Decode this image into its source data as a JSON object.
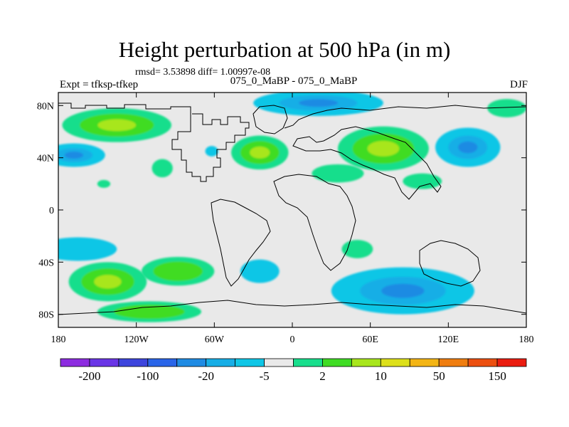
{
  "chart_data": {
    "type": "contour-map",
    "title": "Height perturbation at 500 hPa (in m)",
    "stats_text": "rmsd= 3.53898 diff= 1.00997e-08",
    "subtitle": "075_0_MaBP - 075_0_MaBP",
    "left_label": "Expt = tfksp-tfkep",
    "right_label": "DJF",
    "xlim": [
      -180,
      180
    ],
    "ylim": [
      -90,
      90
    ],
    "x_ticks": [
      {
        "value": -180,
        "label": "180"
      },
      {
        "value": -120,
        "label": "120W"
      },
      {
        "value": -60,
        "label": "60W"
      },
      {
        "value": 0,
        "label": "0"
      },
      {
        "value": 60,
        "label": "60E"
      },
      {
        "value": 120,
        "label": "120E"
      },
      {
        "value": 180,
        "label": "180"
      }
    ],
    "y_ticks": [
      {
        "value": 80,
        "label": "80N"
      },
      {
        "value": 40,
        "label": "40N"
      },
      {
        "value": 0,
        "label": "0"
      },
      {
        "value": -40,
        "label": "40S"
      },
      {
        "value": -80,
        "label": "80S"
      }
    ],
    "colorbar": {
      "colors": [
        "#8d2ce0",
        "#6a35e6",
        "#3d45dd",
        "#2a65e8",
        "#1f8be3",
        "#17aee6",
        "#0fc6e6",
        "#e9e9e9",
        "#18de8c",
        "#3fdc24",
        "#a8e61c",
        "#dde01a",
        "#f3b515",
        "#ef7d0f",
        "#ec4f10",
        "#ea1c10"
      ],
      "labels": [
        {
          "boundary": 1,
          "label": "-200"
        },
        {
          "boundary": 3,
          "label": "-100"
        },
        {
          "boundary": 5,
          "label": "-20"
        },
        {
          "boundary": 7,
          "label": "-5"
        },
        {
          "boundary": 9,
          "label": "2"
        },
        {
          "boundary": 11,
          "label": "10"
        },
        {
          "boundary": 13,
          "label": "50"
        },
        {
          "boundary": 15,
          "label": "150"
        }
      ]
    },
    "anomalies": [
      {
        "lon": -135,
        "lat": 65,
        "rx": 42,
        "ry": 13,
        "value": 12
      },
      {
        "lon": -168,
        "lat": 42,
        "rx": 24,
        "ry": 9,
        "value": -9
      },
      {
        "lon": -100,
        "lat": 32,
        "rx": 8,
        "ry": 7,
        "value": 4
      },
      {
        "lon": -145,
        "lat": 20,
        "rx": 5,
        "ry": 3,
        "value": 3
      },
      {
        "lon": -25,
        "lat": 44,
        "rx": 22,
        "ry": 13,
        "value": 11
      },
      {
        "lon": -62,
        "lat": 45,
        "rx": 5,
        "ry": 4,
        "value": -4
      },
      {
        "lon": 20,
        "lat": 82,
        "rx": 50,
        "ry": 10,
        "value": -9
      },
      {
        "lon": 70,
        "lat": 47,
        "rx": 35,
        "ry": 17,
        "value": 12
      },
      {
        "lon": 135,
        "lat": 48,
        "rx": 25,
        "ry": 15,
        "value": -9
      },
      {
        "lon": 165,
        "lat": 78,
        "rx": 15,
        "ry": 7,
        "value": 5
      },
      {
        "lon": 35,
        "lat": 28,
        "rx": 20,
        "ry": 7,
        "value": 4
      },
      {
        "lon": 100,
        "lat": 22,
        "rx": 15,
        "ry": 6,
        "value": 4
      },
      {
        "lon": -165,
        "lat": -30,
        "rx": 30,
        "ry": 9,
        "value": -4
      },
      {
        "lon": -142,
        "lat": -55,
        "rx": 30,
        "ry": 15,
        "value": 12
      },
      {
        "lon": -88,
        "lat": -47,
        "rx": 28,
        "ry": 11,
        "value": 10
      },
      {
        "lon": -25,
        "lat": -47,
        "rx": 15,
        "ry": 9,
        "value": -4
      },
      {
        "lon": 85,
        "lat": -62,
        "rx": 55,
        "ry": 18,
        "value": -9
      },
      {
        "lon": 50,
        "lat": -30,
        "rx": 12,
        "ry": 7,
        "value": 4
      },
      {
        "lon": -110,
        "lat": -78,
        "rx": 40,
        "ry": 8,
        "value": 6
      }
    ]
  }
}
